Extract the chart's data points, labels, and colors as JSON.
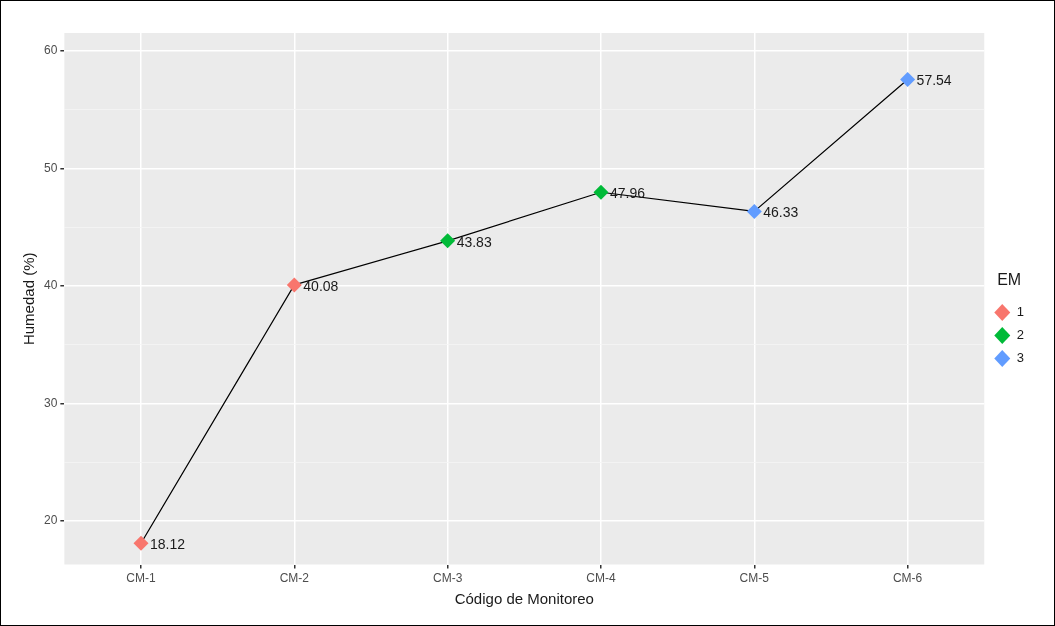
{
  "chart_data": {
    "type": "line",
    "xlabel": "Código de Monitoreo",
    "ylabel": "Humedad (%)",
    "legend_title": "EM",
    "legend": "right",
    "grid": true,
    "marker": "diamond",
    "line_style": "solid",
    "categories": [
      "CM-1",
      "CM-2",
      "CM-3",
      "CM-4",
      "CM-5",
      "CM-6"
    ],
    "ylim": [
      16.3,
      61.5
    ],
    "yticks": [
      20,
      {
        "value": 25,
        "label": null
      },
      30,
      {
        "value": 35,
        "label": null
      },
      40,
      {
        "value": 45,
        "label": null
      },
      50,
      {
        "value": 55,
        "label": null
      },
      60
    ],
    "series": [
      {
        "type": "line",
        "color": "#000000",
        "marker": "none",
        "values": [
          18.12,
          40.08,
          43.83,
          47.96,
          46.33,
          57.54
        ]
      },
      {
        "type": "scatter",
        "name": "1",
        "color": "#f8766d",
        "x": [
          "CM-1",
          "CM-2"
        ],
        "values": [
          18.12,
          40.08
        ],
        "value_labels": [
          "18.12",
          "40.08"
        ]
      },
      {
        "type": "scatter",
        "name": "2",
        "color": "#00ba38",
        "x": [
          "CM-3",
          "CM-4"
        ],
        "values": [
          43.83,
          47.96
        ],
        "value_labels": [
          "43.83",
          "47.96"
        ]
      },
      {
        "type": "scatter",
        "name": "3",
        "color": "#619cff",
        "x": [
          "CM-5",
          "CM-6"
        ],
        "values": [
          46.33,
          57.54
        ],
        "value_labels": [
          "46.33",
          "57.54"
        ]
      }
    ]
  }
}
